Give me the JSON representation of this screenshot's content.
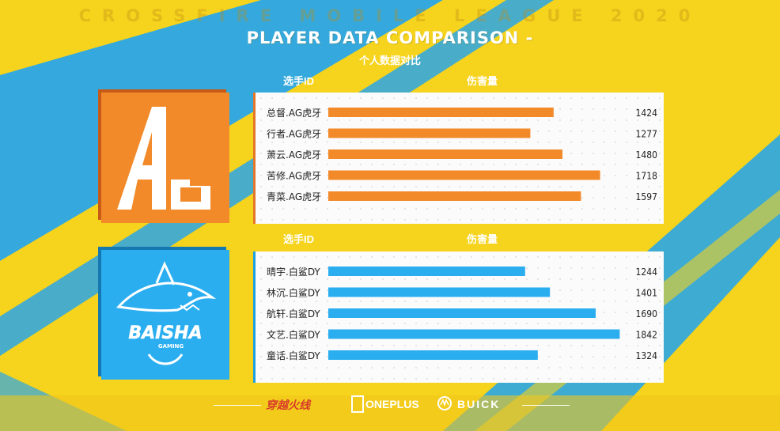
{
  "header": {
    "league": "CROSSFIRE MOBILE LEAGUE 2020",
    "title": "PLAYER DATA COMPARISON -",
    "subtitle": "个人数据对比"
  },
  "columns": {
    "player_id": "选手ID",
    "damage": "伤害量"
  },
  "colors": {
    "ag": "#f28a2a",
    "bs": "#2aaef0",
    "bg_yellow": "#f6d31c",
    "bg_blue": "#2aa6e8"
  },
  "teams": [
    {
      "logo_text": "AG",
      "logo_icon": "ag-logo-icon"
    },
    {
      "logo_text": "BAISHA",
      "logo_subtext": "GAMING",
      "logo_icon": "shark-logo-icon"
    }
  ],
  "chart_data": [
    {
      "type": "bar",
      "orientation": "horizontal",
      "categories": [
        "总督.AG虎牙",
        "行者.AG虎牙",
        "萧云.AG虎牙",
        "苦修.AG虎牙",
        "青菜.AG虎牙"
      ],
      "values": [
        1424,
        1277,
        1480,
        1718,
        1597
      ],
      "xlim": [
        0,
        2000
      ]
    },
    {
      "type": "bar",
      "orientation": "horizontal",
      "categories": [
        "晴宇.白鲨DY",
        "林沉.白鲨DY",
        "航轩.白鲨DY",
        "文艺.白鲨DY",
        "童话.白鲨DY"
      ],
      "values": [
        1244,
        1401,
        1690,
        1842,
        1324
      ],
      "xlim": [
        0,
        2000
      ]
    }
  ],
  "footer": {
    "sponsors": [
      "穿越火线",
      "ONEPLUS",
      "BUICK"
    ]
  }
}
